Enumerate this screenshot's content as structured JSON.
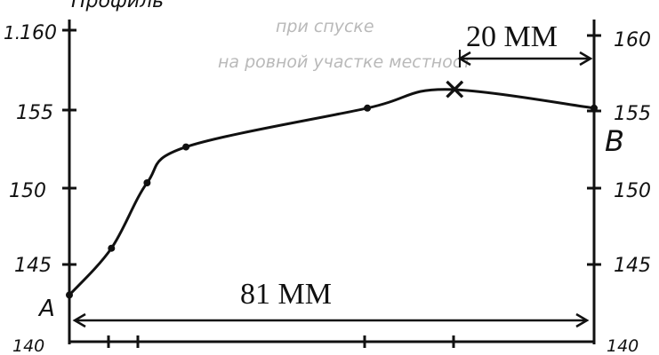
{
  "header_fragment": "Профиль",
  "bleed_through": {
    "line1": "при спуске",
    "line2": "на ровной участке местност"
  },
  "axis_marker": "1.",
  "left_axis": {
    "ticks": [
      "160",
      "155",
      "150",
      "145",
      "140"
    ]
  },
  "right_axis": {
    "ticks": [
      "160",
      "155",
      "150",
      "145",
      "140"
    ]
  },
  "points": {
    "a": {
      "label": "A"
    },
    "b": {
      "label": "B"
    },
    "peak": {
      "label": "✕"
    }
  },
  "measurements": {
    "total_label": "81 MM",
    "segment_label": "20 MM"
  },
  "chart_data": {
    "type": "line",
    "ylim": [
      140,
      160
    ],
    "xlim": [
      0,
      81
    ],
    "yticks": [
      140,
      145,
      150,
      155,
      160
    ],
    "series": [
      {
        "x": [
          0,
          6.5,
          12,
          18,
          46,
          58,
          81
        ],
        "values": [
          143,
          146,
          150.2,
          152.5,
          155,
          156.2,
          155
        ]
      }
    ],
    "grid": false
  }
}
